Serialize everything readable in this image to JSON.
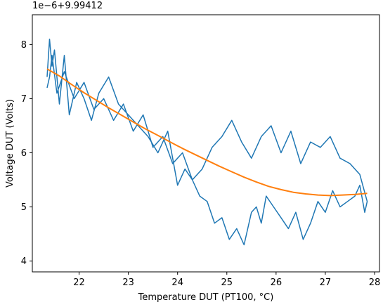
{
  "chart_data": {
    "type": "line",
    "title": "",
    "xlabel": "Temperature DUT (PT100, °C)",
    "ylabel": "Voltage DUT (Volts)",
    "y_offset_label": "1e−6+9.99412",
    "y_unit_scale": 1e-06,
    "y_offset": 9.99412,
    "xlim": [
      21.05,
      28.1
    ],
    "ylim": [
      3.8,
      8.55
    ],
    "xticks": [
      22,
      23,
      24,
      25,
      26,
      27,
      28
    ],
    "xtick_labels": [
      "22",
      "23",
      "24",
      "25",
      "26",
      "27",
      "28"
    ],
    "yticks": [
      4,
      5,
      6,
      7,
      8
    ],
    "ytick_labels": [
      "4",
      "5",
      "6",
      "7",
      "8"
    ],
    "grid": false,
    "legend": "none",
    "colors": {
      "measured": "#1f77b4",
      "fit": "#ff7f0e",
      "axes": "#000000"
    },
    "series": [
      {
        "kind": "measured",
        "x": [
          21.35,
          21.4,
          21.45,
          21.5,
          21.6,
          21.7,
          21.8,
          21.95,
          22.1,
          22.25,
          22.4,
          22.6,
          22.8,
          23.0,
          23.2,
          23.4,
          23.6,
          23.8,
          24.0,
          24.15,
          24.3,
          24.45,
          24.6,
          24.75,
          24.9,
          25.05,
          25.2,
          25.35,
          25.5,
          25.6,
          25.7,
          25.8,
          25.95,
          26.1,
          26.25,
          26.4,
          26.55,
          26.7,
          26.85,
          27.0,
          27.15,
          27.3,
          27.45,
          27.6,
          27.7,
          27.8,
          27.85,
          27.7,
          27.5,
          27.3,
          27.1,
          26.9,
          26.7,
          26.5,
          26.3,
          26.1,
          25.9,
          25.7,
          25.5,
          25.3,
          25.1,
          24.9,
          24.7,
          24.5,
          24.3,
          24.1,
          23.9,
          23.7,
          23.5,
          23.3,
          23.1,
          22.9,
          22.7,
          22.5,
          22.3,
          22.1,
          21.9,
          21.7,
          21.55,
          21.45,
          21.4,
          21.35
        ],
        "y": [
          7.4,
          8.1,
          7.6,
          7.9,
          6.9,
          7.8,
          6.7,
          7.3,
          7.0,
          6.6,
          7.1,
          7.4,
          6.9,
          6.7,
          6.5,
          6.3,
          6.0,
          6.4,
          5.4,
          5.7,
          5.5,
          5.2,
          5.1,
          4.7,
          4.8,
          4.4,
          4.6,
          4.3,
          4.9,
          5.0,
          4.7,
          5.2,
          5.0,
          4.8,
          4.6,
          4.9,
          4.4,
          4.7,
          5.1,
          4.9,
          5.3,
          5.0,
          5.1,
          5.2,
          5.4,
          4.9,
          5.1,
          5.6,
          5.8,
          5.9,
          6.3,
          6.1,
          6.2,
          5.8,
          6.4,
          6.0,
          6.5,
          6.3,
          5.9,
          6.2,
          6.6,
          6.3,
          6.1,
          5.7,
          5.5,
          6.0,
          5.8,
          6.3,
          6.1,
          6.7,
          6.4,
          6.9,
          6.6,
          7.0,
          6.8,
          7.3,
          7.0,
          7.5,
          7.1,
          7.8,
          7.4,
          7.2
        ]
      },
      {
        "kind": "fit",
        "x": [
          21.35,
          21.6,
          21.85,
          22.1,
          22.35,
          22.6,
          22.85,
          23.1,
          23.35,
          23.6,
          23.85,
          24.1,
          24.35,
          24.6,
          24.85,
          25.1,
          25.35,
          25.6,
          25.85,
          26.1,
          26.35,
          26.6,
          26.85,
          27.1,
          27.35,
          27.6,
          27.85
        ],
        "y": [
          7.55,
          7.42,
          7.26,
          7.11,
          6.97,
          6.83,
          6.7,
          6.57,
          6.44,
          6.32,
          6.2,
          6.08,
          5.97,
          5.86,
          5.75,
          5.65,
          5.55,
          5.46,
          5.38,
          5.32,
          5.27,
          5.24,
          5.22,
          5.21,
          5.22,
          5.23,
          5.25
        ]
      }
    ]
  }
}
